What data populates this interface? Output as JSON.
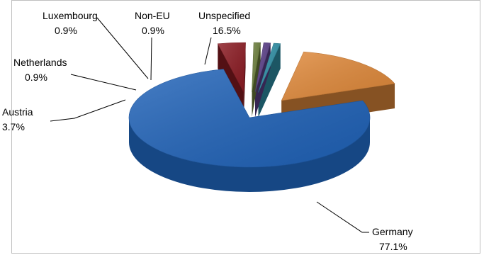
{
  "chart_data": {
    "type": "pie",
    "style": "3d-exploded",
    "series": [
      {
        "values": [
          77.1,
          3.7,
          0.9,
          0.9,
          0.9,
          16.5
        ],
        "labels": [
          "Germany",
          "Austria",
          "Netherlands",
          "Luxembourg",
          "Non-EU",
          "Unspecified"
        ]
      }
    ],
    "slices": [
      {
        "category": "Germany",
        "value": 77.1,
        "value_label": "77.1%",
        "color": "#1f62b8"
      },
      {
        "category": "Austria",
        "value": 3.7,
        "value_label": "3.7%",
        "color": "#8b1a22"
      },
      {
        "category": "Netherlands",
        "value": 0.9,
        "value_label": "0.9%",
        "color": "#6a7d3a"
      },
      {
        "category": "Luxembourg",
        "value": 0.9,
        "value_label": "0.9%",
        "color": "#5a3f88"
      },
      {
        "category": "Non-EU",
        "value": 0.9,
        "value_label": "0.9%",
        "color": "#2e8fa6"
      },
      {
        "category": "Unspecified",
        "value": 16.5,
        "value_label": "16.5%",
        "color": "#e0893a"
      }
    ],
    "title": "",
    "legend": "none"
  }
}
